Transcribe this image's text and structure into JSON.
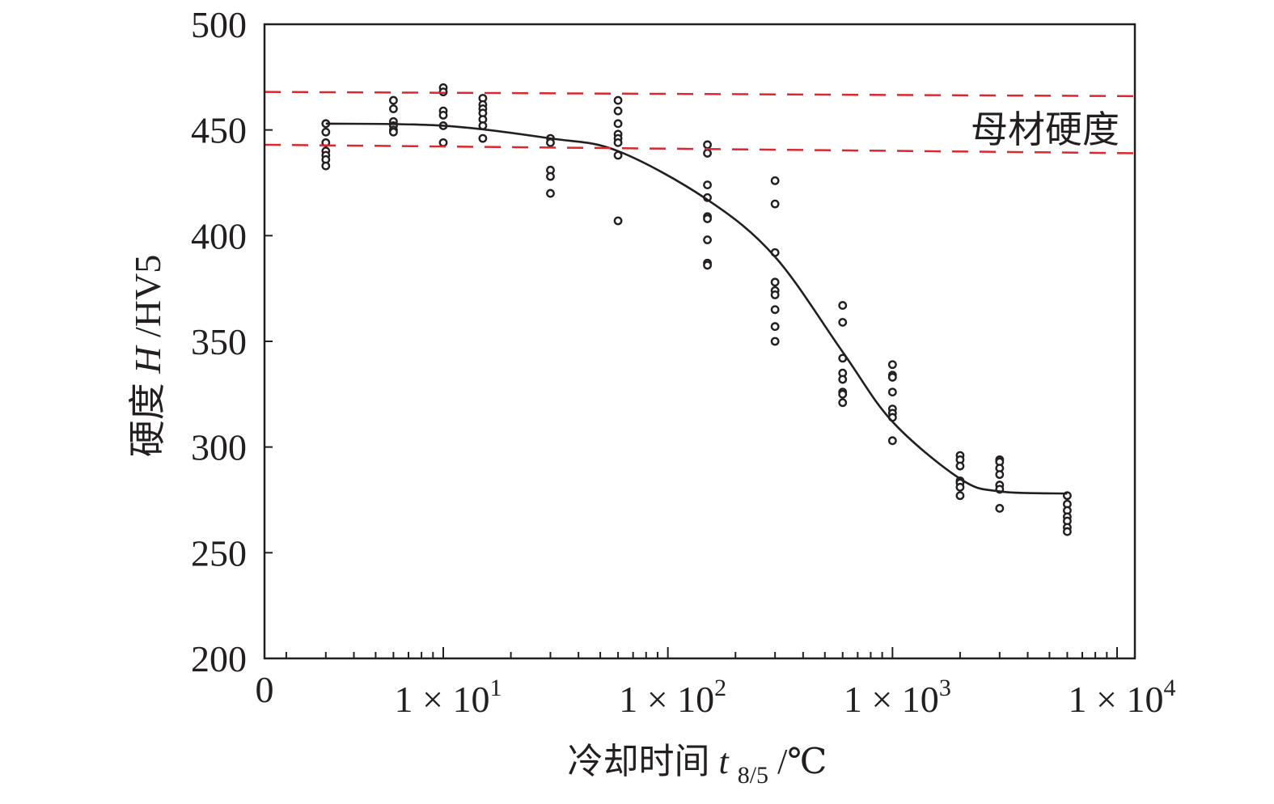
{
  "chart_data": {
    "type": "scatter",
    "title": "",
    "xlabel": "冷却时间",
    "xlabel_symbol": "t",
    "xlabel_subscript": "8/5",
    "xlabel_unit": "/℃",
    "ylabel": "硬度",
    "ylabel_symbol": "H",
    "ylabel_unit": "/HV5",
    "xscale": "log",
    "xlim": [
      1.6,
      12000
    ],
    "ylim": [
      200,
      500
    ],
    "yticks": [
      200,
      250,
      300,
      350,
      400,
      450,
      500
    ],
    "ytick_labels": [
      "200",
      "250",
      "300",
      "350",
      "400",
      "450",
      "500"
    ],
    "xtick_origin_label": "0",
    "xticks": [
      {
        "value": 10,
        "mantissa": "1 × 10",
        "exp": "1"
      },
      {
        "value": 100,
        "mantissa": "1 × 10",
        "exp": "2"
      },
      {
        "value": 1000,
        "mantissa": "1 × 10",
        "exp": "3"
      },
      {
        "value": 10000,
        "mantissa": "1 × 10",
        "exp": "4"
      }
    ],
    "grid": false,
    "series": [
      {
        "name": "measured",
        "kind": "scatter",
        "marker": "open-circle",
        "color": "#231f20",
        "points": [
          [
            3,
            453
          ],
          [
            3,
            449
          ],
          [
            3,
            444
          ],
          [
            3,
            440
          ],
          [
            3,
            438
          ],
          [
            3,
            436
          ],
          [
            3,
            433
          ],
          [
            6,
            464
          ],
          [
            6,
            460
          ],
          [
            6,
            454
          ],
          [
            6,
            452
          ],
          [
            6,
            450
          ],
          [
            6,
            449
          ],
          [
            10,
            470
          ],
          [
            10,
            468
          ],
          [
            10,
            459
          ],
          [
            10,
            457
          ],
          [
            10,
            452
          ],
          [
            10,
            444
          ],
          [
            15,
            465
          ],
          [
            15,
            462
          ],
          [
            15,
            460
          ],
          [
            15,
            458
          ],
          [
            15,
            455
          ],
          [
            15,
            452
          ],
          [
            15,
            446
          ],
          [
            30,
            446
          ],
          [
            30,
            444
          ],
          [
            30,
            431
          ],
          [
            30,
            428
          ],
          [
            30,
            420
          ],
          [
            60,
            464
          ],
          [
            60,
            459
          ],
          [
            60,
            453
          ],
          [
            60,
            448
          ],
          [
            60,
            446
          ],
          [
            60,
            444
          ],
          [
            60,
            438
          ],
          [
            60,
            407
          ],
          [
            150,
            443
          ],
          [
            150,
            439
          ],
          [
            150,
            424
          ],
          [
            150,
            418
          ],
          [
            150,
            409
          ],
          [
            150,
            408
          ],
          [
            150,
            398
          ],
          [
            150,
            387
          ],
          [
            150,
            386
          ],
          [
            300,
            426
          ],
          [
            300,
            415
          ],
          [
            300,
            392
          ],
          [
            300,
            378
          ],
          [
            300,
            374
          ],
          [
            300,
            372
          ],
          [
            300,
            365
          ],
          [
            300,
            357
          ],
          [
            300,
            350
          ],
          [
            600,
            367
          ],
          [
            600,
            359
          ],
          [
            600,
            342
          ],
          [
            600,
            335
          ],
          [
            600,
            332
          ],
          [
            600,
            326
          ],
          [
            600,
            325
          ],
          [
            600,
            321
          ],
          [
            1000,
            339
          ],
          [
            1000,
            334
          ],
          [
            1000,
            333
          ],
          [
            1000,
            326
          ],
          [
            1000,
            318
          ],
          [
            1000,
            316
          ],
          [
            1000,
            314
          ],
          [
            1000,
            303
          ],
          [
            2000,
            296
          ],
          [
            2000,
            294
          ],
          [
            2000,
            291
          ],
          [
            2000,
            284
          ],
          [
            2000,
            283
          ],
          [
            2000,
            281
          ],
          [
            2000,
            277
          ],
          [
            3000,
            294
          ],
          [
            3000,
            293
          ],
          [
            3000,
            290
          ],
          [
            3000,
            287
          ],
          [
            3000,
            282
          ],
          [
            3000,
            280
          ],
          [
            3000,
            271
          ],
          [
            6000,
            277
          ],
          [
            6000,
            273
          ],
          [
            6000,
            270
          ],
          [
            6000,
            267
          ],
          [
            6000,
            265
          ],
          [
            6000,
            262
          ],
          [
            6000,
            260
          ]
        ]
      },
      {
        "name": "fit",
        "kind": "line",
        "color": "#231f20",
        "points": [
          [
            3,
            453
          ],
          [
            10,
            452
          ],
          [
            30,
            446
          ],
          [
            60,
            440
          ],
          [
            150,
            417
          ],
          [
            300,
            390
          ],
          [
            600,
            345
          ],
          [
            1000,
            312
          ],
          [
            2000,
            285
          ],
          [
            3000,
            279
          ],
          [
            6000,
            278
          ]
        ]
      },
      {
        "name": "base-upper",
        "kind": "dashed",
        "color": "#d9282f",
        "points": [
          [
            1.6,
            468
          ],
          [
            12000,
            466
          ]
        ]
      },
      {
        "name": "base-lower",
        "kind": "dashed",
        "color": "#d9282f",
        "points": [
          [
            1.6,
            443
          ],
          [
            12000,
            439
          ]
        ]
      }
    ],
    "annotations": [
      {
        "text": "母材硬度",
        "x": 2000,
        "y": 452
      }
    ]
  }
}
